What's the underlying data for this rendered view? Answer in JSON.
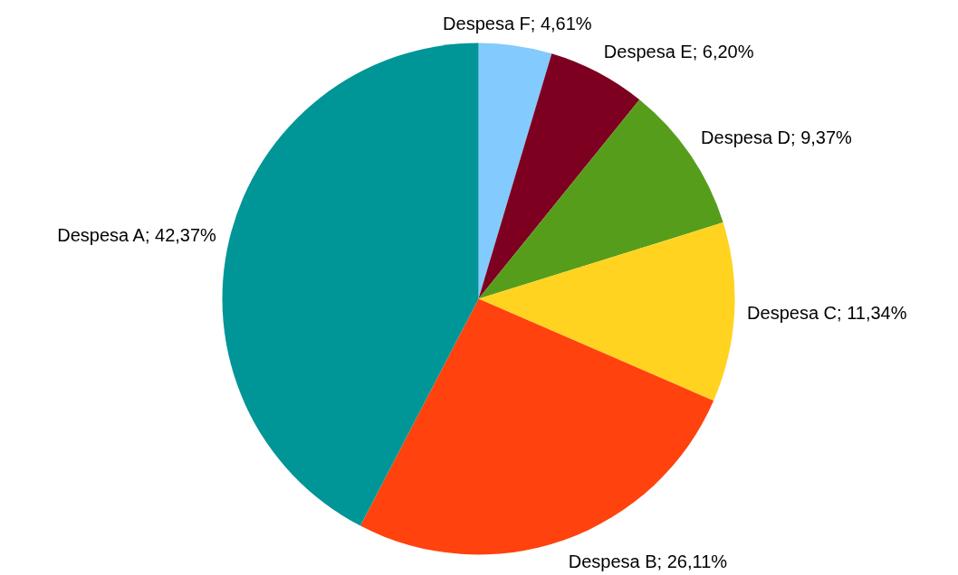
{
  "chart_data": {
    "type": "pie",
    "categories": [
      "Despesa F",
      "Despesa E",
      "Despesa D",
      "Despesa C",
      "Despesa B",
      "Despesa A"
    ],
    "values": [
      4.61,
      6.2,
      9.37,
      11.34,
      26.11,
      42.37
    ],
    "value_labels": [
      "4,61%",
      "6,20%",
      "9,37%",
      "11,34%",
      "26,11%",
      "42,37%"
    ],
    "colors": [
      "#83caff",
      "#7e0021",
      "#579d1c",
      "#ffd320",
      "#ff420e",
      "#009596"
    ]
  }
}
